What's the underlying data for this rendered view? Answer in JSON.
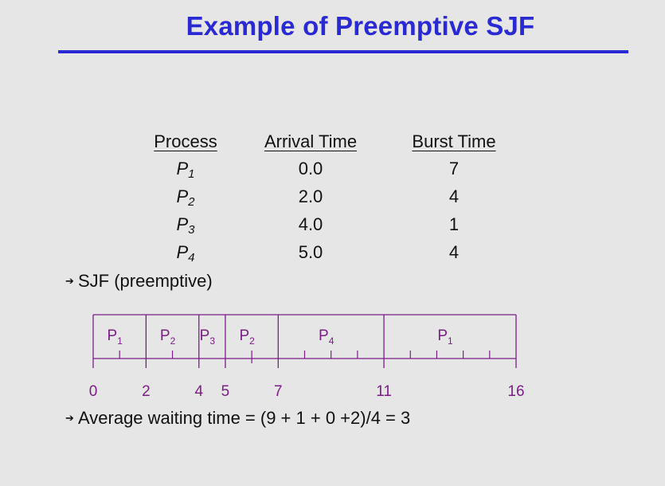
{
  "slide": {
    "title": "Example of Preemptive SJF"
  },
  "table": {
    "headers": [
      "Process",
      "Arrival Time",
      "Burst Time"
    ],
    "rows": [
      {
        "name": "P",
        "sub": "1",
        "arrival": "0.0",
        "burst": "7"
      },
      {
        "name": "P",
        "sub": "2",
        "arrival": "2.0",
        "burst": "4"
      },
      {
        "name": "P",
        "sub": "3",
        "arrival": "4.0",
        "burst": "1"
      },
      {
        "name": "P",
        "sub": "4",
        "arrival": "5.0",
        "burst": "4"
      }
    ]
  },
  "bullets": {
    "sjf": "SJF (preemptive)",
    "avg": "Average waiting time = (9 + 1 + 0 +2)/4 = 3"
  },
  "gantt": {
    "segments": [
      {
        "label": "P",
        "sub": "1",
        "start": 0,
        "end": 2
      },
      {
        "label": "P",
        "sub": "2",
        "start": 2,
        "end": 4
      },
      {
        "label": "P",
        "sub": "3",
        "start": 4,
        "end": 5
      },
      {
        "label": "P",
        "sub": "2",
        "start": 5,
        "end": 7
      },
      {
        "label": "P",
        "sub": "4",
        "start": 7,
        "end": 11
      },
      {
        "label": "P",
        "sub": "1",
        "start": 11,
        "end": 16
      }
    ],
    "time_labels": [
      "0",
      "2",
      "4",
      "5",
      "7",
      "11",
      "16"
    ],
    "time_values": [
      0,
      2,
      4,
      5,
      7,
      11,
      16
    ],
    "color": "#7a1e86"
  }
}
